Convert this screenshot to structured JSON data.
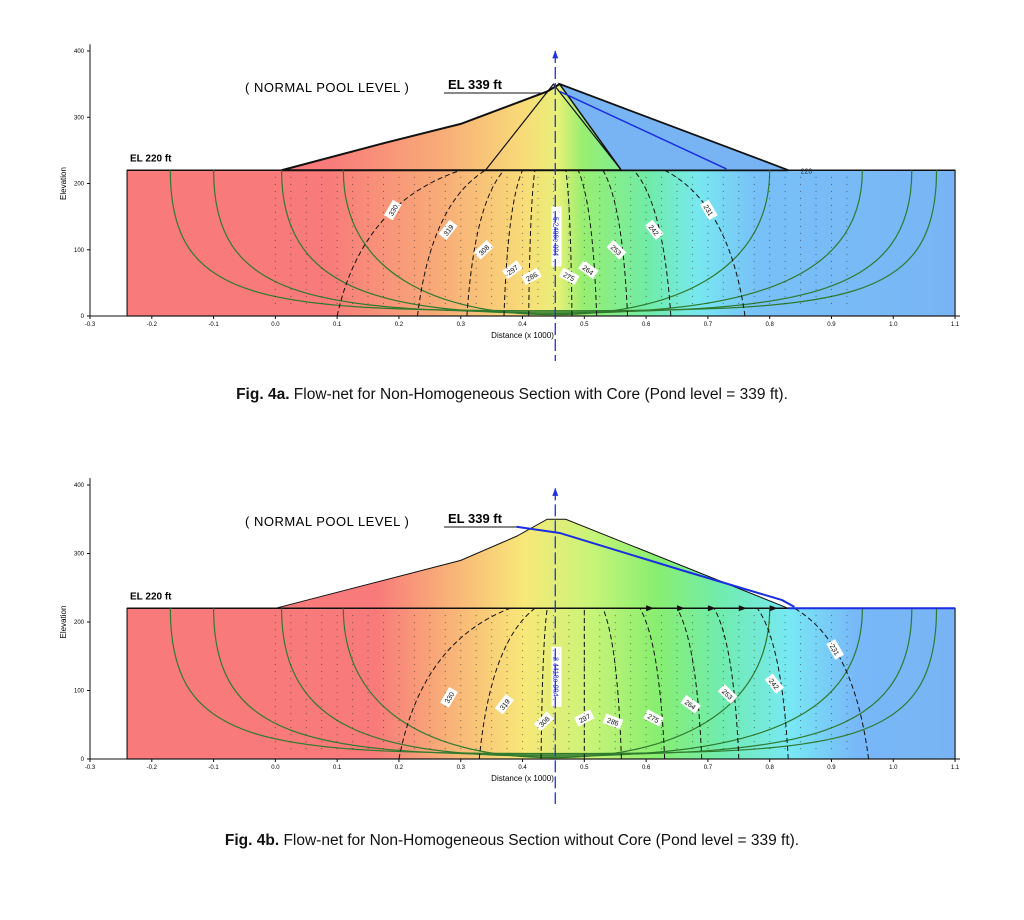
{
  "figures": [
    {
      "id": "4a",
      "caption_bold": "Fig. 4a.",
      "caption_text": " Flow-net for Non-Homogeneous Section with Core (Pond level = 339 ft).",
      "pool_label": "( NORMAL  POOL  LEVEL )",
      "pool_el": "EL  339 ft",
      "base_el": "EL  220 ft",
      "tailwater_label": "220",
      "ylabel": "Elevation",
      "xlabel": "Distance (x  1000)",
      "yticks": [
        "0",
        "100",
        "200",
        "300",
        "400"
      ],
      "xticks": [
        "-0.3",
        "-0.2",
        "-0.1",
        "0.0",
        "0.1",
        "0.2",
        "0.3",
        "0.4",
        "0.5",
        "0.6",
        "0.7",
        "0.8",
        "0.9",
        "1.0",
        "1.1"
      ],
      "contour_labels": [
        "330",
        "319",
        "308",
        "297",
        "286",
        "5.2496e-004",
        "275",
        "264",
        "253",
        "242",
        "231"
      ],
      "pool_elevation_ft": 339,
      "base_elevation_ft": 220
    },
    {
      "id": "4b",
      "caption_bold": "Fig. 4b.",
      "caption_text": " Flow-net for Non-Homogeneous Section without Core (Pond level = 339 ft).",
      "pool_label": "( NORMAL  POOL  LEVEL )",
      "pool_el": "EL  339 ft",
      "base_el": "EL  220 ft",
      "ylabel": "Elevation",
      "xlabel": "Distance (x  1000)",
      "yticks": [
        "0",
        "100",
        "200",
        "300",
        "400"
      ],
      "xticks": [
        "-0.3",
        "-0.2",
        "-0.1",
        "0.0",
        "0.1",
        "0.2",
        "0.3",
        "0.4",
        "0.5",
        "0.6",
        "0.7",
        "0.8",
        "0.9",
        "1.0",
        "1.1"
      ],
      "contour_labels": [
        "330",
        "319",
        "308",
        "8.4418e-004",
        "297",
        "286",
        "275",
        "264",
        "253",
        "242",
        "231"
      ],
      "pool_elevation_ft": 339,
      "base_elevation_ft": 220
    }
  ]
}
